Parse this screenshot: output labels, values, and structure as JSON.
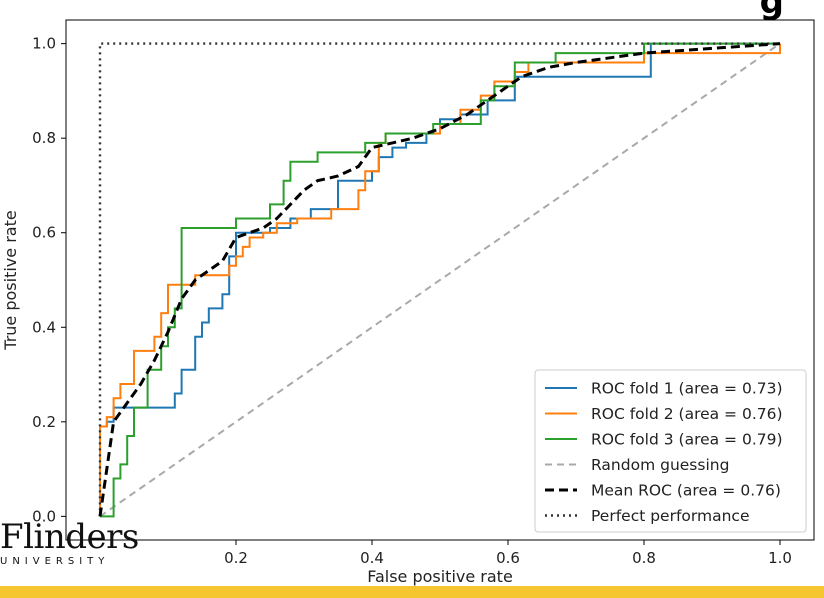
{
  "chart_data": {
    "type": "line",
    "xlabel": "False positive rate",
    "ylabel": "True positive rate",
    "xlim": [
      -0.05,
      1.05
    ],
    "ylim": [
      -0.05,
      1.05
    ],
    "xticks": [
      "0.2",
      "0.4",
      "0.6",
      "0.8",
      "1.0"
    ],
    "yticks": [
      "0.0",
      "0.2",
      "0.4",
      "0.6",
      "0.8",
      "1.0"
    ],
    "legend_position": "lower-right",
    "grid": false,
    "series": [
      {
        "name": "ROC fold 1 (area = 0.73)",
        "color": "#1f77b4",
        "style": "solid",
        "points": [
          [
            0,
            0
          ],
          [
            0,
            0.19
          ],
          [
            0.01,
            0.19
          ],
          [
            0.01,
            0.2
          ],
          [
            0.02,
            0.2
          ],
          [
            0.02,
            0.23
          ],
          [
            0.11,
            0.23
          ],
          [
            0.11,
            0.26
          ],
          [
            0.12,
            0.26
          ],
          [
            0.12,
            0.31
          ],
          [
            0.14,
            0.31
          ],
          [
            0.14,
            0.38
          ],
          [
            0.15,
            0.38
          ],
          [
            0.15,
            0.41
          ],
          [
            0.16,
            0.41
          ],
          [
            0.16,
            0.44
          ],
          [
            0.18,
            0.44
          ],
          [
            0.18,
            0.47
          ],
          [
            0.19,
            0.47
          ],
          [
            0.19,
            0.55
          ],
          [
            0.2,
            0.55
          ],
          [
            0.2,
            0.6
          ],
          [
            0.25,
            0.6
          ],
          [
            0.25,
            0.61
          ],
          [
            0.28,
            0.61
          ],
          [
            0.28,
            0.63
          ],
          [
            0.31,
            0.63
          ],
          [
            0.31,
            0.65
          ],
          [
            0.35,
            0.65
          ],
          [
            0.35,
            0.71
          ],
          [
            0.4,
            0.71
          ],
          [
            0.4,
            0.73
          ],
          [
            0.41,
            0.73
          ],
          [
            0.41,
            0.76
          ],
          [
            0.43,
            0.76
          ],
          [
            0.43,
            0.78
          ],
          [
            0.45,
            0.78
          ],
          [
            0.45,
            0.79
          ],
          [
            0.48,
            0.79
          ],
          [
            0.48,
            0.81
          ],
          [
            0.5,
            0.81
          ],
          [
            0.5,
            0.84
          ],
          [
            0.53,
            0.84
          ],
          [
            0.53,
            0.85
          ],
          [
            0.57,
            0.85
          ],
          [
            0.57,
            0.88
          ],
          [
            0.61,
            0.88
          ],
          [
            0.61,
            0.93
          ],
          [
            0.81,
            0.93
          ],
          [
            0.81,
            1.0
          ],
          [
            1.0,
            1.0
          ]
        ]
      },
      {
        "name": "ROC fold 2 (area = 0.76)",
        "color": "#ff7f0e",
        "style": "solid",
        "points": [
          [
            0,
            0
          ],
          [
            0,
            0.19
          ],
          [
            0.01,
            0.19
          ],
          [
            0.01,
            0.21
          ],
          [
            0.02,
            0.21
          ],
          [
            0.02,
            0.25
          ],
          [
            0.03,
            0.25
          ],
          [
            0.03,
            0.28
          ],
          [
            0.05,
            0.28
          ],
          [
            0.05,
            0.35
          ],
          [
            0.08,
            0.35
          ],
          [
            0.08,
            0.38
          ],
          [
            0.09,
            0.38
          ],
          [
            0.09,
            0.43
          ],
          [
            0.1,
            0.43
          ],
          [
            0.1,
            0.49
          ],
          [
            0.14,
            0.49
          ],
          [
            0.14,
            0.51
          ],
          [
            0.19,
            0.51
          ],
          [
            0.19,
            0.53
          ],
          [
            0.2,
            0.53
          ],
          [
            0.2,
            0.55
          ],
          [
            0.21,
            0.55
          ],
          [
            0.21,
            0.57
          ],
          [
            0.22,
            0.57
          ],
          [
            0.22,
            0.59
          ],
          [
            0.24,
            0.59
          ],
          [
            0.24,
            0.6
          ],
          [
            0.26,
            0.6
          ],
          [
            0.26,
            0.62
          ],
          [
            0.29,
            0.62
          ],
          [
            0.29,
            0.63
          ],
          [
            0.34,
            0.63
          ],
          [
            0.34,
            0.65
          ],
          [
            0.38,
            0.65
          ],
          [
            0.38,
            0.69
          ],
          [
            0.39,
            0.69
          ],
          [
            0.39,
            0.73
          ],
          [
            0.41,
            0.73
          ],
          [
            0.41,
            0.79
          ],
          [
            0.42,
            0.79
          ],
          [
            0.42,
            0.81
          ],
          [
            0.5,
            0.81
          ],
          [
            0.5,
            0.83
          ],
          [
            0.53,
            0.83
          ],
          [
            0.53,
            0.86
          ],
          [
            0.56,
            0.86
          ],
          [
            0.56,
            0.89
          ],
          [
            0.58,
            0.89
          ],
          [
            0.58,
            0.92
          ],
          [
            0.61,
            0.92
          ],
          [
            0.61,
            0.94
          ],
          [
            0.63,
            0.94
          ],
          [
            0.63,
            0.96
          ],
          [
            0.8,
            0.96
          ],
          [
            0.8,
            0.98
          ],
          [
            1.0,
            0.98
          ],
          [
            1.0,
            1.0
          ]
        ]
      },
      {
        "name": "ROC fold 3 (area = 0.79)",
        "color": "#2ca02c",
        "style": "solid",
        "points": [
          [
            0,
            0
          ],
          [
            0.02,
            0
          ],
          [
            0.02,
            0.08
          ],
          [
            0.03,
            0.08
          ],
          [
            0.03,
            0.11
          ],
          [
            0.04,
            0.11
          ],
          [
            0.04,
            0.17
          ],
          [
            0.05,
            0.17
          ],
          [
            0.05,
            0.23
          ],
          [
            0.07,
            0.23
          ],
          [
            0.07,
            0.31
          ],
          [
            0.09,
            0.31
          ],
          [
            0.09,
            0.36
          ],
          [
            0.1,
            0.36
          ],
          [
            0.1,
            0.4
          ],
          [
            0.11,
            0.4
          ],
          [
            0.11,
            0.44
          ],
          [
            0.12,
            0.44
          ],
          [
            0.12,
            0.61
          ],
          [
            0.2,
            0.61
          ],
          [
            0.2,
            0.63
          ],
          [
            0.25,
            0.63
          ],
          [
            0.25,
            0.66
          ],
          [
            0.27,
            0.66
          ],
          [
            0.27,
            0.71
          ],
          [
            0.28,
            0.71
          ],
          [
            0.28,
            0.75
          ],
          [
            0.32,
            0.75
          ],
          [
            0.32,
            0.77
          ],
          [
            0.39,
            0.77
          ],
          [
            0.39,
            0.79
          ],
          [
            0.42,
            0.79
          ],
          [
            0.42,
            0.81
          ],
          [
            0.49,
            0.81
          ],
          [
            0.49,
            0.83
          ],
          [
            0.56,
            0.83
          ],
          [
            0.56,
            0.88
          ],
          [
            0.58,
            0.88
          ],
          [
            0.58,
            0.91
          ],
          [
            0.61,
            0.91
          ],
          [
            0.61,
            0.96
          ],
          [
            0.67,
            0.96
          ],
          [
            0.67,
            0.98
          ],
          [
            0.8,
            0.98
          ],
          [
            0.8,
            1.0
          ],
          [
            1.0,
            1.0
          ]
        ]
      },
      {
        "name": "Random guessing",
        "color": "#a9a9a9",
        "style": "dashed",
        "points": [
          [
            0,
            0
          ],
          [
            1,
            1
          ]
        ]
      },
      {
        "name": "Mean ROC (area = 0.76)",
        "color": "#000000",
        "style": "dashed-bold",
        "points": [
          [
            0,
            0
          ],
          [
            0.01,
            0.1
          ],
          [
            0.02,
            0.2
          ],
          [
            0.04,
            0.24
          ],
          [
            0.06,
            0.28
          ],
          [
            0.08,
            0.33
          ],
          [
            0.1,
            0.39
          ],
          [
            0.12,
            0.46
          ],
          [
            0.14,
            0.5
          ],
          [
            0.16,
            0.52
          ],
          [
            0.18,
            0.54
          ],
          [
            0.2,
            0.59
          ],
          [
            0.22,
            0.6
          ],
          [
            0.24,
            0.61
          ],
          [
            0.26,
            0.63
          ],
          [
            0.28,
            0.66
          ],
          [
            0.3,
            0.69
          ],
          [
            0.32,
            0.71
          ],
          [
            0.35,
            0.72
          ],
          [
            0.38,
            0.74
          ],
          [
            0.4,
            0.78
          ],
          [
            0.43,
            0.79
          ],
          [
            0.46,
            0.8
          ],
          [
            0.5,
            0.82
          ],
          [
            0.54,
            0.85
          ],
          [
            0.58,
            0.89
          ],
          [
            0.62,
            0.93
          ],
          [
            0.66,
            0.95
          ],
          [
            0.7,
            0.96
          ],
          [
            0.75,
            0.97
          ],
          [
            0.8,
            0.98
          ],
          [
            0.9,
            0.99
          ],
          [
            1.0,
            1.0
          ]
        ]
      },
      {
        "name": "Perfect performance",
        "color": "#333333",
        "style": "dotted",
        "points": [
          [
            0,
            0
          ],
          [
            0,
            1
          ],
          [
            1,
            1
          ]
        ]
      }
    ]
  },
  "logo": {
    "main": "Flinders",
    "sub": "UNIVERSITY"
  },
  "corner_heading": "g"
}
